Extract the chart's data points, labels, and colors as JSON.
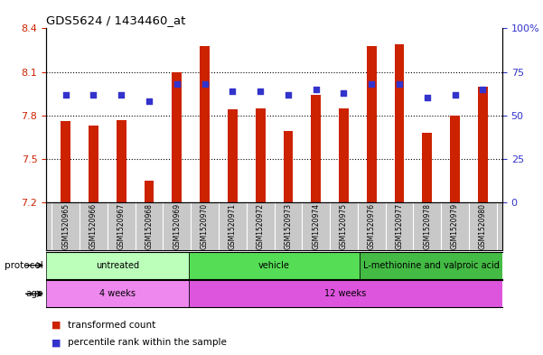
{
  "title": "GDS5624 / 1434460_at",
  "samples": [
    "GSM1520965",
    "GSM1520966",
    "GSM1520967",
    "GSM1520968",
    "GSM1520969",
    "GSM1520970",
    "GSM1520971",
    "GSM1520972",
    "GSM1520973",
    "GSM1520974",
    "GSM1520975",
    "GSM1520976",
    "GSM1520977",
    "GSM1520978",
    "GSM1520979",
    "GSM1520980"
  ],
  "transformed_count": [
    7.76,
    7.73,
    7.77,
    7.35,
    8.1,
    8.28,
    7.84,
    7.85,
    7.69,
    7.94,
    7.85,
    8.28,
    8.29,
    7.68,
    7.8,
    8.0
  ],
  "percentile_rank": [
    62,
    62,
    62,
    58,
    68,
    68,
    64,
    64,
    62,
    65,
    63,
    68,
    68,
    60,
    62,
    65
  ],
  "ymin": 7.2,
  "ymax": 8.4,
  "yticks": [
    7.2,
    7.5,
    7.8,
    8.1,
    8.4
  ],
  "right_yticks": [
    0,
    25,
    50,
    75,
    100
  ],
  "right_yticklabels": [
    "0",
    "25",
    "50",
    "75",
    "100%"
  ],
  "bar_color": "#cc2200",
  "dot_color": "#3333cc",
  "xtick_bg": "#c8c8c8",
  "plot_bg": "#ffffff",
  "border_color": "#000000",
  "protocol_groups": [
    {
      "label": "untreated",
      "start": 0,
      "end": 5,
      "color": "#bbffbb"
    },
    {
      "label": "vehicle",
      "start": 5,
      "end": 11,
      "color": "#55dd55"
    },
    {
      "label": "L-methionine and valproic acid",
      "start": 11,
      "end": 16,
      "color": "#44bb44"
    }
  ],
  "age_groups": [
    {
      "label": "4 weeks",
      "start": 0,
      "end": 5,
      "color": "#ee88ee"
    },
    {
      "label": "12 weeks",
      "start": 5,
      "end": 16,
      "color": "#dd55dd"
    }
  ],
  "legend_items": [
    {
      "label": "transformed count",
      "color": "#cc2200"
    },
    {
      "label": "percentile rank within the sample",
      "color": "#3333cc"
    }
  ],
  "bar_width": 0.35,
  "dot_size": 20,
  "ylabel_color": "#cc2200",
  "right_ylabel_color": "#3333cc"
}
